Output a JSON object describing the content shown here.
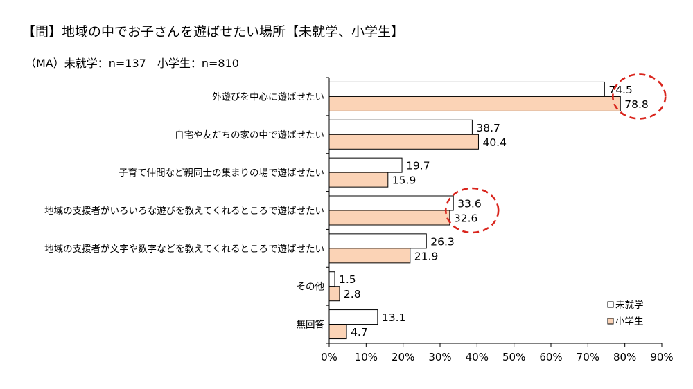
{
  "title": "【問】地域の中でお子さんを遊ばせたい場所【未就学、小学生】",
  "subtitle": "（MA）未就学：n=137　小学生：n=810",
  "colors": {
    "preschool": "#ffffff",
    "elementary": "#fbd3b6",
    "bar_stroke": "#000000",
    "highlight": "#d9241c"
  },
  "chart_data": {
    "type": "bar",
    "orientation": "horizontal",
    "categories": [
      "外遊びを中心に遊ばせたい",
      "自宅や友だちの家の中で遊ばせたい",
      "子育て仲間など親同士の集まりの場で遊ばせたい",
      "地域の支援者がいろいろな遊びを教えてくれるところで遊ばせたい",
      "地域の支援者が文字や数字などを教えてくれるところで遊ばせたい",
      "その他",
      "無回答"
    ],
    "series": [
      {
        "name": "未就学",
        "values": [
          74.5,
          38.7,
          19.7,
          33.6,
          26.3,
          1.5,
          13.1
        ]
      },
      {
        "name": "小学生",
        "values": [
          78.8,
          40.4,
          15.9,
          32.6,
          21.9,
          2.8,
          4.7
        ]
      }
    ],
    "data_labels": [
      [
        "74.5",
        "38.7",
        "19.7",
        "33.6",
        "26.3",
        "1.5",
        "13.1"
      ],
      [
        "78.8",
        "40.4",
        "15.9",
        "32.6",
        "21.9",
        "2.8",
        "4.7"
      ]
    ],
    "xlim": [
      0,
      90
    ],
    "x_ticks": [
      "0%",
      "10%",
      "20%",
      "30%",
      "40%",
      "50%",
      "60%",
      "70%",
      "80%",
      "90%"
    ],
    "grid": false,
    "legend": {
      "position": "bottom-right",
      "entries": [
        "未就学",
        "小学生"
      ]
    },
    "highlighted_categories": [
      0,
      3
    ]
  }
}
